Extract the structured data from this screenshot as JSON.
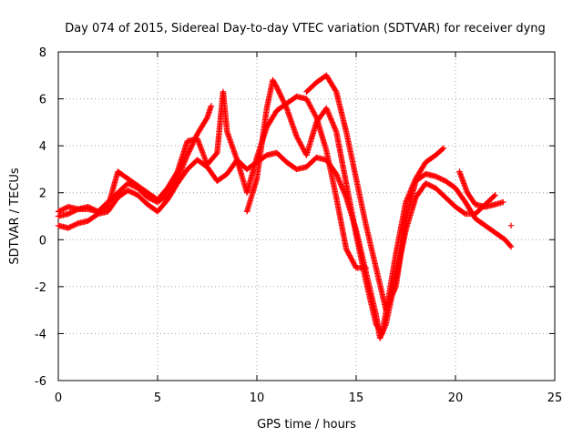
{
  "chart_data": {
    "type": "scatter",
    "title": "Day 074 of 2015, Sidereal Day-to-day VTEC variation (SDTVAR) for receiver dyng",
    "xlabel": "GPS time / hours",
    "ylabel": "SDTVAR / TECUs",
    "xlim": [
      0,
      25
    ],
    "ylim": [
      -6,
      8
    ],
    "xticks": [
      "0",
      "5",
      "10",
      "15",
      "20",
      "25"
    ],
    "yticks": [
      "-6",
      "-4",
      "-2",
      "0",
      "2",
      "4",
      "6",
      "8"
    ],
    "grid": true,
    "marker": "+",
    "color": "#ff0000",
    "series": [
      {
        "points": [
          [
            0,
            1.2
          ],
          [
            0.5,
            1.4
          ],
          [
            1,
            1.3
          ],
          [
            1.5,
            1.3
          ],
          [
            2,
            1.2
          ],
          [
            2.5,
            1.6
          ],
          [
            3,
            2.0
          ],
          [
            3.5,
            2.4
          ],
          [
            4,
            2.2
          ],
          [
            4.5,
            1.8
          ],
          [
            5,
            1.6
          ],
          [
            5.5,
            1.9
          ],
          [
            6,
            2.6
          ],
          [
            6.5,
            3.6
          ],
          [
            7,
            4.5
          ],
          [
            7.5,
            5.2
          ],
          [
            7.7,
            5.7
          ]
        ]
      },
      {
        "points": [
          [
            0,
            0.6
          ],
          [
            0.5,
            0.5
          ],
          [
            1,
            0.7
          ],
          [
            1.5,
            0.8
          ],
          [
            2,
            1.1
          ],
          [
            2.5,
            1.2
          ],
          [
            3,
            1.8
          ],
          [
            3.5,
            2.1
          ],
          [
            4,
            1.9
          ],
          [
            4.5,
            1.5
          ],
          [
            5,
            1.2
          ],
          [
            5.5,
            1.7
          ],
          [
            6,
            2.4
          ],
          [
            6.5,
            3.0
          ],
          [
            7,
            3.4
          ],
          [
            7.5,
            3.1
          ],
          [
            8,
            2.5
          ],
          [
            8.5,
            2.8
          ],
          [
            9,
            3.4
          ],
          [
            9.5,
            3.0
          ],
          [
            10,
            3.3
          ],
          [
            10.5,
            3.6
          ],
          [
            11,
            3.7
          ],
          [
            11.5,
            3.3
          ],
          [
            12,
            3.0
          ],
          [
            12.5,
            3.1
          ],
          [
            13,
            3.5
          ],
          [
            13.5,
            3.4
          ],
          [
            14,
            2.8
          ],
          [
            14.5,
            1.8
          ],
          [
            15,
            0.4
          ],
          [
            15.5,
            -1.4
          ],
          [
            16,
            -3.2
          ],
          [
            16.2,
            -4.2
          ],
          [
            16.5,
            -3.6
          ],
          [
            17,
            -1.6
          ],
          [
            17.5,
            0.4
          ],
          [
            18,
            1.8
          ],
          [
            18.5,
            2.4
          ],
          [
            19,
            2.2
          ],
          [
            19.5,
            1.8
          ],
          [
            20,
            1.4
          ],
          [
            20.5,
            1.1
          ],
          [
            21,
            1.1
          ],
          [
            21.5,
            1.5
          ],
          [
            22,
            1.9
          ]
        ]
      },
      {
        "points": [
          [
            0,
            1.0
          ],
          [
            0.5,
            1.1
          ],
          [
            1,
            1.3
          ],
          [
            1.5,
            1.4
          ],
          [
            2,
            1.2
          ],
          [
            2.5,
            1.4
          ],
          [
            3,
            2.9
          ],
          [
            3.5,
            2.6
          ],
          [
            4,
            2.3
          ],
          [
            4.5,
            2.0
          ],
          [
            5,
            1.7
          ],
          [
            5.5,
            2.2
          ],
          [
            6,
            2.9
          ],
          [
            6.5,
            4.2
          ],
          [
            7,
            4.3
          ],
          [
            7.5,
            3.2
          ],
          [
            8,
            3.7
          ],
          [
            8.3,
            6.3
          ],
          [
            8.5,
            4.6
          ],
          [
            9,
            3.4
          ],
          [
            9.5,
            2.0
          ],
          [
            10,
            3.5
          ],
          [
            10.5,
            4.8
          ],
          [
            11,
            5.5
          ],
          [
            11.5,
            5.8
          ],
          [
            12,
            6.1
          ],
          [
            12.5,
            6.0
          ],
          [
            13,
            5.2
          ],
          [
            13.5,
            3.8
          ],
          [
            14,
            1.8
          ],
          [
            14.5,
            -0.4
          ],
          [
            15,
            -1.2
          ],
          [
            15.5,
            -1.2
          ]
        ]
      },
      {
        "points": [
          [
            9.5,
            1.2
          ],
          [
            10,
            2.6
          ],
          [
            10.5,
            5.6
          ],
          [
            10.8,
            6.8
          ],
          [
            11,
            6.5
          ],
          [
            11.5,
            5.6
          ],
          [
            12,
            4.4
          ],
          [
            12.5,
            3.6
          ],
          [
            13,
            5.0
          ],
          [
            13.5,
            5.6
          ],
          [
            14,
            4.6
          ],
          [
            14.5,
            2.4
          ],
          [
            15,
            0.2
          ],
          [
            15.5,
            -1.8
          ],
          [
            16,
            -3.6
          ],
          [
            16.3,
            -4.0
          ],
          [
            16.6,
            -2.6
          ],
          [
            17,
            -0.6
          ],
          [
            17.5,
            1.6
          ],
          [
            18,
            2.6
          ],
          [
            18.5,
            3.3
          ],
          [
            19,
            3.6
          ],
          [
            19.4,
            3.9
          ]
        ]
      },
      {
        "points": [
          [
            12.5,
            6.3
          ],
          [
            13,
            6.7
          ],
          [
            13.5,
            7.0
          ],
          [
            14,
            6.3
          ],
          [
            14.5,
            4.6
          ],
          [
            15,
            2.6
          ],
          [
            15.5,
            0.6
          ],
          [
            16,
            -1.2
          ],
          [
            16.5,
            -3.0
          ],
          [
            17,
            -2.0
          ],
          [
            17.5,
            0.8
          ],
          [
            18,
            2.5
          ],
          [
            18.5,
            2.8
          ],
          [
            19,
            2.7
          ],
          [
            19.5,
            2.5
          ],
          [
            20,
            2.2
          ],
          [
            20.5,
            1.6
          ],
          [
            21,
            0.9
          ],
          [
            21.5,
            0.6
          ],
          [
            22,
            0.3
          ],
          [
            22.5,
            0.0
          ],
          [
            22.8,
            -0.3
          ]
        ]
      },
      {
        "points": [
          [
            20.2,
            2.9
          ],
          [
            20.6,
            2.0
          ],
          [
            21,
            1.5
          ],
          [
            21.5,
            1.4
          ],
          [
            22,
            1.5
          ],
          [
            22.4,
            1.6
          ]
        ]
      },
      {
        "points": [
          [
            22.8,
            0.6
          ]
        ]
      }
    ]
  }
}
